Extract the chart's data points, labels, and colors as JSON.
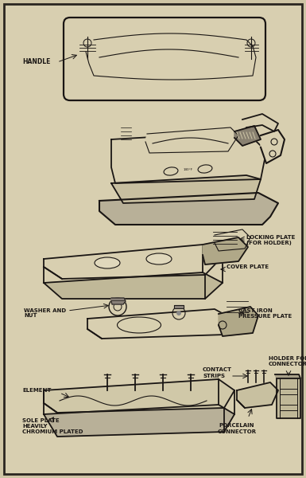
{
  "background_color": "#cfc5a5",
  "paper_color": "#d8cfb0",
  "line_color": "#1a1614",
  "border_color": "#2a2520",
  "figsize": [
    3.85,
    6.0
  ],
  "dpi": 100,
  "labels": {
    "handle": "HANDLE",
    "locking_plate": "LOCKING PLATE\n(FOR HOLDER)",
    "cover_plate": "COVER PLATE",
    "washer_nut": "WASHER AND\nNUT",
    "cast_iron": "CAST IRON\nPRESSURE PLATE",
    "element": "ELEMENT",
    "sole_plate": "SOLE PLATE\nHEAVILY\nCHROMIUM PLATED",
    "contact_strips": "CONTACT\nSTRIPS",
    "porcelain": "PORCELAIN\nCONNECTOR",
    "holder": "HOLDER FOR\nCONNECTOR"
  }
}
